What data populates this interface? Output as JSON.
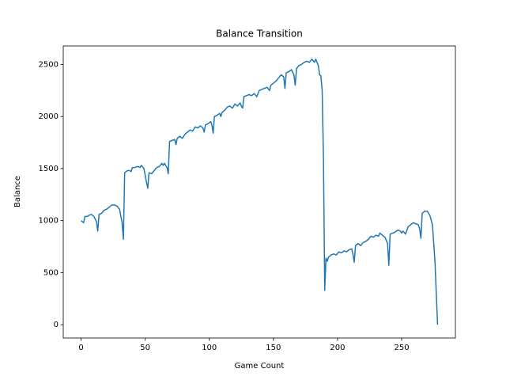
{
  "chart_data": {
    "type": "line",
    "title": "Balance Transition",
    "x_label": "Game Count",
    "y_label": "Balance",
    "x": [
      0,
      2,
      3,
      5,
      6,
      8,
      10,
      12,
      13,
      14,
      16,
      18,
      20,
      22,
      24,
      26,
      28,
      30,
      32,
      33,
      34,
      36,
      38,
      39,
      40,
      42,
      44,
      46,
      47,
      49,
      51,
      52,
      53,
      55,
      57,
      59,
      61,
      63,
      64,
      65,
      67,
      68,
      69,
      71,
      73,
      74,
      75,
      77,
      79,
      81,
      83,
      85,
      87,
      89,
      91,
      93,
      95,
      96,
      97,
      99,
      101,
      102,
      103,
      104,
      106,
      108,
      109,
      110,
      112,
      114,
      116,
      118,
      120,
      122,
      124,
      125,
      126,
      127,
      129,
      131,
      133,
      135,
      137,
      139,
      141,
      143,
      145,
      147,
      148,
      150,
      152,
      154,
      156,
      158,
      159,
      160,
      162,
      164,
      166,
      167,
      168,
      170,
      172,
      174,
      176,
      178,
      180,
      182,
      183,
      185,
      186,
      187,
      188,
      189,
      190,
      191,
      192,
      193,
      195,
      197,
      199,
      201,
      203,
      205,
      207,
      209,
      211,
      212,
      213,
      214,
      216,
      218,
      220,
      222,
      224,
      226,
      228,
      230,
      232,
      233,
      235,
      237,
      239,
      240,
      241,
      243,
      245,
      247,
      249,
      250,
      251,
      253,
      255,
      257,
      259,
      261,
      263,
      264,
      265,
      266,
      268,
      270,
      272,
      274,
      276,
      278
    ],
    "series": [
      {
        "name": "Balance",
        "color": "#1f77b4",
        "values": [
          1000,
          980,
          1040,
          1040,
          1050,
          1060,
          1040,
          990,
          900,
          1060,
          1070,
          1100,
          1110,
          1130,
          1150,
          1150,
          1140,
          1110,
          980,
          820,
          1460,
          1480,
          1480,
          1470,
          1510,
          1510,
          1520,
          1510,
          1530,
          1500,
          1370,
          1310,
          1460,
          1450,
          1480,
          1510,
          1520,
          1550,
          1530,
          1550,
          1510,
          1450,
          1760,
          1770,
          1780,
          1730,
          1790,
          1810,
          1790,
          1830,
          1850,
          1870,
          1860,
          1900,
          1890,
          1910,
          1890,
          1850,
          1920,
          1930,
          1950,
          1920,
          1840,
          2000,
          2010,
          2030,
          2000,
          2040,
          2060,
          2090,
          2100,
          2080,
          2120,
          2100,
          2130,
          2100,
          2080,
          2190,
          2200,
          2210,
          2200,
          2220,
          2190,
          2250,
          2260,
          2270,
          2280,
          2250,
          2300,
          2320,
          2340,
          2370,
          2400,
          2380,
          2270,
          2420,
          2430,
          2450,
          2400,
          2300,
          2460,
          2490,
          2500,
          2520,
          2530,
          2520,
          2550,
          2520,
          2550,
          2490,
          2400,
          2390,
          2250,
          1600,
          330,
          640,
          610,
          650,
          670,
          680,
          670,
          700,
          690,
          710,
          700,
          720,
          730,
          680,
          600,
          760,
          780,
          760,
          790,
          800,
          820,
          850,
          840,
          860,
          850,
          880,
          860,
          840,
          780,
          570,
          870,
          880,
          890,
          910,
          900,
          880,
          900,
          870,
          940,
          960,
          980,
          970,
          960,
          920,
          830,
          1070,
          1090,
          1090,
          1050,
          960,
          600,
          0
        ]
      }
    ],
    "xlim": [
      -13.9,
      291.9
    ],
    "ylim": [
      -127.5,
      2677.5
    ],
    "xticks": [
      0,
      50,
      100,
      150,
      200,
      250
    ],
    "yticks": [
      0,
      500,
      1000,
      1500,
      2000,
      2500
    ]
  }
}
